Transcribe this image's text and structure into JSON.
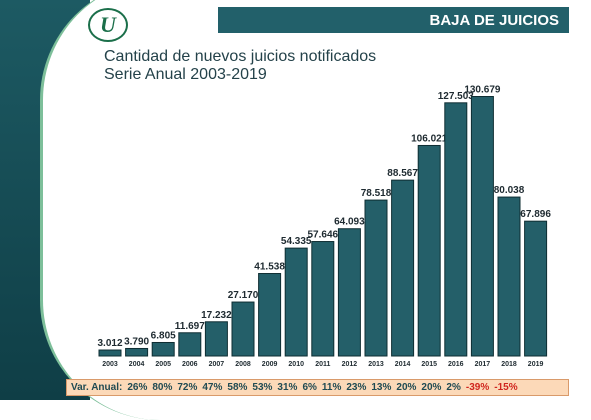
{
  "header": {
    "title": "BAJA DE JUICIOS"
  },
  "logo": {
    "text": "U"
  },
  "chart_data": {
    "type": "bar",
    "title": "Cantidad de nuevos juicios notificados",
    "subtitle": "Serie Anual 2003-2019",
    "categories": [
      "2003",
      "2004",
      "2005",
      "2006",
      "2007",
      "2008",
      "2009",
      "2010",
      "2011",
      "2012",
      "2013",
      "2014",
      "2015",
      "2016",
      "2017",
      "2018",
      "2019"
    ],
    "values": [
      3012,
      3790,
      6805,
      11697,
      17232,
      27170,
      41538,
      54335,
      57646,
      64093,
      78518,
      88567,
      106021,
      127503,
      130679,
      80038,
      67896
    ],
    "value_labels": [
      "3.012",
      "3.790",
      "6.805",
      "11.697",
      "17.232",
      "27.170",
      "41.538",
      "54.335",
      "57.646",
      "64.093",
      "78.518",
      "88.567",
      "106.021",
      "127.503",
      "130.679",
      "80.038",
      "67.896"
    ],
    "ylim": [
      0,
      140000
    ],
    "grid": false,
    "bar_color": "#245f69"
  },
  "variation": {
    "label": "Var. Anual:",
    "items": [
      {
        "text": "26%",
        "negative": false
      },
      {
        "text": "80%",
        "negative": false
      },
      {
        "text": "72%",
        "negative": false
      },
      {
        "text": "47%",
        "negative": false
      },
      {
        "text": "58%",
        "negative": false
      },
      {
        "text": "53%",
        "negative": false
      },
      {
        "text": "31%",
        "negative": false
      },
      {
        "text": "6%",
        "negative": false
      },
      {
        "text": "11%",
        "negative": false
      },
      {
        "text": "23%",
        "negative": false
      },
      {
        "text": "13%",
        "negative": false
      },
      {
        "text": "20%",
        "negative": false
      },
      {
        "text": "20%",
        "negative": false
      },
      {
        "text": "2%",
        "negative": false
      },
      {
        "text": "-39%",
        "negative": true
      },
      {
        "text": "-15%",
        "negative": true
      }
    ]
  }
}
